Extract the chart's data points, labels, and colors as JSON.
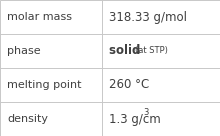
{
  "rows": [
    {
      "label": "molar mass",
      "value": "318.33 g/mol",
      "type": "simple"
    },
    {
      "label": "phase",
      "value": "solid",
      "value2": "(at STP)",
      "type": "phase"
    },
    {
      "label": "melting point",
      "value": "260 °C",
      "type": "simple"
    },
    {
      "label": "density",
      "value": "1.3 g/cm",
      "value2": "3",
      "type": "super"
    }
  ],
  "col_split": 0.465,
  "bg_color": "#ffffff",
  "border_color": "#c8c8c8",
  "label_fontsize": 8.0,
  "value_fontsize": 8.5,
  "small_fontsize": 6.0,
  "text_color": "#404040"
}
